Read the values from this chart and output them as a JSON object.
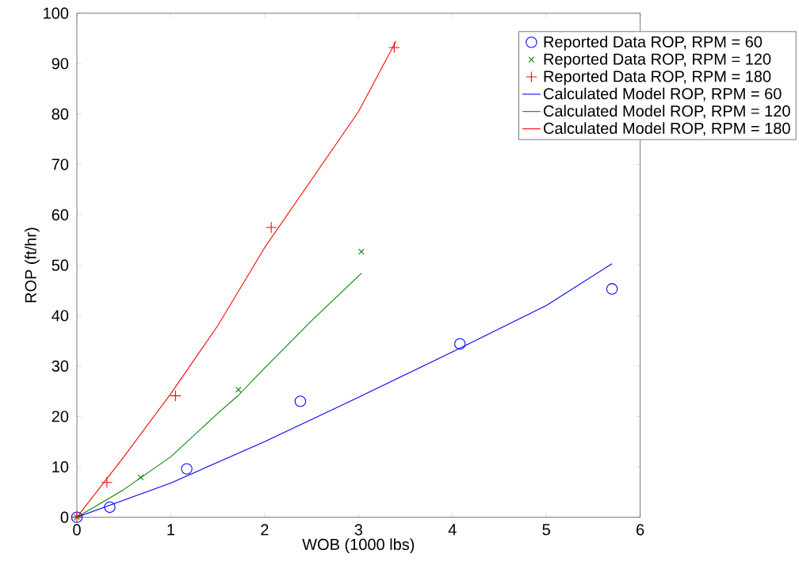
{
  "chart_data": {
    "type": "line",
    "xlabel": "WOB (1000 lbs)",
    "ylabel": "ROP (ft/hr)",
    "xlim": [
      0,
      6
    ],
    "ylim": [
      0,
      100
    ],
    "xticks": [
      0,
      1,
      2,
      3,
      4,
      5,
      6
    ],
    "yticks": [
      0,
      10,
      20,
      30,
      40,
      50,
      60,
      70,
      80,
      90,
      100
    ],
    "grid": false,
    "legend": "top right",
    "series": [
      {
        "name": "Reported Data ROP, RPM = 60",
        "type": "scatter",
        "marker": "circle",
        "color": "#0000ff",
        "x": [
          0,
          0.35,
          1.17,
          2.38,
          4.08,
          5.7
        ],
        "values": [
          0,
          2,
          9.6,
          23,
          34.4,
          45.3
        ]
      },
      {
        "name": "Reported Data ROP, RPM = 120",
        "type": "scatter",
        "marker": "cross",
        "color": "#008000",
        "x": [
          0,
          0.68,
          1.72,
          3.03
        ],
        "values": [
          0,
          7.9,
          25.3,
          52.7
        ]
      },
      {
        "name": "Reported Data ROP, RPM = 180",
        "type": "scatter",
        "marker": "plus",
        "color": "#ff0000",
        "x": [
          0,
          0.32,
          1.05,
          2.07,
          3.38
        ],
        "values": [
          0,
          6.9,
          24.1,
          57.5,
          93.2
        ]
      },
      {
        "name": "Calculated Model ROP, RPM = 60",
        "color": "#0000ff",
        "x": [
          0,
          1,
          2,
          3,
          4,
          5,
          5.7
        ],
        "values": [
          0,
          6.8,
          15,
          23.8,
          32.8,
          42,
          50.3
        ]
      },
      {
        "name": "Calculated Model ROP, RPM = 120",
        "color": "#008000",
        "x": [
          0,
          0.5,
          1,
          1.5,
          1.72,
          2,
          2.5,
          3.03
        ],
        "values": [
          0,
          5.5,
          12,
          20.6,
          24.2,
          29.6,
          39,
          48.4
        ]
      },
      {
        "name": "Calculated Model ROP, RPM = 180",
        "color": "#ff0000",
        "x": [
          0,
          0.5,
          1,
          1.5,
          2,
          2.5,
          3,
          3.4
        ],
        "values": [
          0,
          12,
          24.5,
          38,
          53.5,
          67,
          80.5,
          94.5
        ]
      }
    ]
  }
}
